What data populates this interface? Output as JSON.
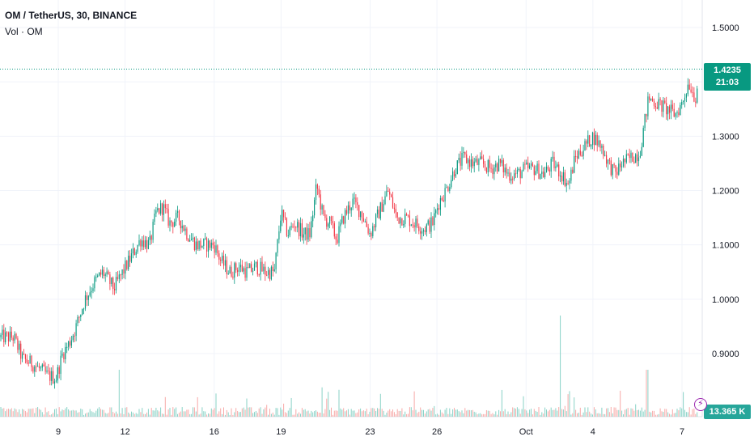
{
  "header": {
    "symbol_title": "OM / TetherUS, 30, BINANCE",
    "volume_title": "Vol · OM"
  },
  "price_label": {
    "price": "1.4235",
    "countdown": "21:03",
    "color": "#089981"
  },
  "volume_label": {
    "value": "13.365 K",
    "color": "#26a69a"
  },
  "alert_icon": "lightning-bolt-icon",
  "colors": {
    "up": "#089981",
    "down": "#f23645",
    "vol_up": "#89d2c6",
    "vol_down": "#f7a9a7",
    "grid": "#f0f3fa",
    "axis_text": "#131722"
  },
  "chart_data": {
    "type": "candlestick",
    "symbol": "OM / TetherUS",
    "interval": "30",
    "exchange": "BINANCE",
    "yaxis_ticks": [
      "1.5000",
      "1.4000",
      "1.3000",
      "1.2000",
      "1.1000",
      "1.0000",
      "0.9000"
    ],
    "yaxis_range": [
      0.8,
      1.52
    ],
    "xaxis_ticks": [
      "9",
      "12",
      "16",
      "19",
      "23",
      "26",
      "Oct",
      "4",
      "7"
    ],
    "x_range_days": [
      6.5,
      38.8
    ],
    "last_price": 1.4235,
    "price_path": [
      [
        7.0,
        0.93
      ],
      [
        7.4,
        0.89
      ],
      [
        7.9,
        0.88
      ],
      [
        8.5,
        0.86
      ],
      [
        8.9,
        0.855
      ],
      [
        9.2,
        0.9
      ],
      [
        9.5,
        0.92
      ],
      [
        9.8,
        0.95
      ],
      [
        10.2,
        1.0
      ],
      [
        10.6,
        1.03
      ],
      [
        11.0,
        1.05
      ],
      [
        11.5,
        1.02
      ],
      [
        11.9,
        1.05
      ],
      [
        12.3,
        1.08
      ],
      [
        12.7,
        1.11
      ],
      [
        13.1,
        1.1
      ],
      [
        13.4,
        1.16
      ],
      [
        13.7,
        1.17
      ],
      [
        14.0,
        1.14
      ],
      [
        14.4,
        1.15
      ],
      [
        14.8,
        1.12
      ],
      [
        15.2,
        1.1
      ],
      [
        15.6,
        1.1
      ],
      [
        16.0,
        1.1
      ],
      [
        16.3,
        1.07
      ],
      [
        16.7,
        1.05
      ],
      [
        17.1,
        1.06
      ],
      [
        17.5,
        1.05
      ],
      [
        17.9,
        1.06
      ],
      [
        18.3,
        1.05
      ],
      [
        18.7,
        1.05
      ],
      [
        19.0,
        1.16
      ],
      [
        19.3,
        1.12
      ],
      [
        19.6,
        1.14
      ],
      [
        20.0,
        1.12
      ],
      [
        20.3,
        1.12
      ],
      [
        20.6,
        1.21
      ],
      [
        20.9,
        1.15
      ],
      [
        21.2,
        1.14
      ],
      [
        21.5,
        1.11
      ],
      [
        21.8,
        1.15
      ],
      [
        22.2,
        1.18
      ],
      [
        22.6,
        1.16
      ],
      [
        23.0,
        1.12
      ],
      [
        23.4,
        1.16
      ],
      [
        23.8,
        1.2
      ],
      [
        24.2,
        1.15
      ],
      [
        24.6,
        1.15
      ],
      [
        25.0,
        1.14
      ],
      [
        25.4,
        1.13
      ],
      [
        25.8,
        1.14
      ],
      [
        26.1,
        1.18
      ],
      [
        26.4,
        1.2
      ],
      [
        26.8,
        1.24
      ],
      [
        27.2,
        1.26
      ],
      [
        27.6,
        1.25
      ],
      [
        28.0,
        1.25
      ],
      [
        28.4,
        1.24
      ],
      [
        28.8,
        1.25
      ],
      [
        29.2,
        1.23
      ],
      [
        29.6,
        1.23
      ],
      [
        30.0,
        1.24
      ],
      [
        30.4,
        1.24
      ],
      [
        30.8,
        1.23
      ],
      [
        31.2,
        1.25
      ],
      [
        31.6,
        1.23
      ],
      [
        31.9,
        1.21
      ],
      [
        32.2,
        1.26
      ],
      [
        32.6,
        1.28
      ],
      [
        33.0,
        1.3
      ],
      [
        33.4,
        1.28
      ],
      [
        33.7,
        1.25
      ],
      [
        34.0,
        1.23
      ],
      [
        34.3,
        1.25
      ],
      [
        34.7,
        1.26
      ],
      [
        35.1,
        1.27
      ],
      [
        35.5,
        1.37
      ],
      [
        35.9,
        1.36
      ],
      [
        36.3,
        1.35
      ],
      [
        36.7,
        1.34
      ],
      [
        37.0,
        1.36
      ],
      [
        37.3,
        1.4
      ],
      [
        37.6,
        1.37
      ],
      [
        37.9,
        1.45
      ],
      [
        38.2,
        1.43
      ],
      [
        38.6,
        1.42
      ]
    ],
    "volume_axis_partial": "0.0000",
    "volume_last": "13.365 K",
    "volume_spike": {
      "date": "Oct 1",
      "approx_share_of_pane": 1.0
    }
  }
}
